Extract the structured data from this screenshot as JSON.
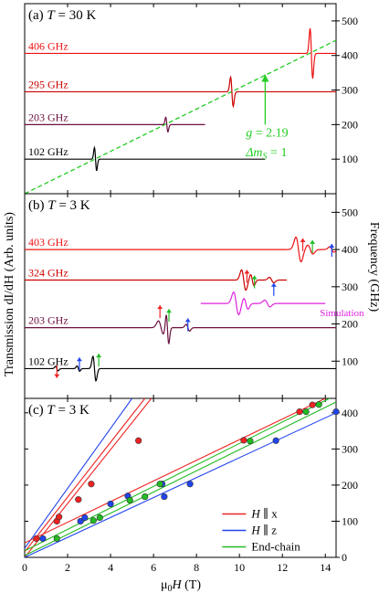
{
  "chart_data": [
    {
      "type": "line",
      "panel_label": "(a)",
      "title_var": "T",
      "title_value": " = 30 K",
      "xlabel": "",
      "ylabel": "",
      "right_ylabel": "Frequency (GHz)",
      "xlim": [
        0,
        14.5
      ],
      "ylim": [
        0,
        550
      ],
      "right_ticks": [
        100,
        200,
        300,
        400,
        500
      ],
      "series": [
        {
          "name": "102 GHz",
          "color": "#000000",
          "offset": 100,
          "x_start": 0,
          "x_end": 11.2,
          "resonances": [
            {
              "x": 3.3,
              "amp": 55,
              "width": 0.05
            }
          ]
        },
        {
          "name": "203 GHz",
          "color": "#6b1040",
          "offset": 200,
          "x_start": 0,
          "x_end": 8.4,
          "resonances": [
            {
              "x": 6.62,
              "amp": 35,
              "width": 0.05
            }
          ]
        },
        {
          "name": "295 GHz",
          "color": "#cc0000",
          "offset": 295,
          "x_start": 0,
          "x_end": 14.5,
          "resonances": [
            {
              "x": 9.65,
              "amp": 70,
              "width": 0.06
            }
          ]
        },
        {
          "name": "406 GHz",
          "color": "#ee1111",
          "offset": 406,
          "x_start": 0,
          "x_end": 14.5,
          "resonances": [
            {
              "x": 13.35,
              "amp": 120,
              "width": 0.06
            }
          ]
        }
      ],
      "fit_line": {
        "x": [
          0,
          14.5
        ],
        "y": [
          0,
          444
        ],
        "color": "#22cc22",
        "style": "dashed"
      },
      "annotation": {
        "line1_var": "g",
        "line1_value": " = 2.19",
        "line2_var": "Δm",
        "line2_sub": "S",
        "line2_value": " = 1",
        "arrow_x": 11.2,
        "arrow_y_from": 200,
        "arrow_y_to": 345
      }
    },
    {
      "type": "line",
      "panel_label": "(b)",
      "title_var": "T",
      "title_value": " = 3 K",
      "xlabel": "",
      "ylabel": "Transmission dI/dH (Arb. units)",
      "right_ylabel": "Frequency (GHz)",
      "xlim": [
        0,
        14.5
      ],
      "ylim": [
        0,
        550
      ],
      "right_ticks": [
        100,
        200,
        300,
        400,
        500
      ],
      "series": [
        {
          "name": "102 GHz",
          "color": "#000000",
          "offset": 80,
          "x_start": 0,
          "x_end": 14.5,
          "resonances": [
            {
              "x": 1.5,
              "amp": 10,
              "width": 0.06
            },
            {
              "x": 2.5,
              "amp": 12,
              "width": 0.06
            },
            {
              "x": 3.25,
              "amp": 55,
              "width": 0.07
            }
          ]
        },
        {
          "name": "203 GHz",
          "color": "#6b1040",
          "offset": 190,
          "x_start": 0,
          "x_end": 14.5,
          "resonances": [
            {
              "x": 6.35,
              "amp": 30,
              "width": 0.12
            },
            {
              "x": 6.65,
              "amp": 70,
              "width": 0.06
            },
            {
              "x": 7.6,
              "amp": 15,
              "width": 0.08
            }
          ]
        },
        {
          "name": "324 GHz",
          "color": "#cc0000",
          "offset": 318,
          "x_start": 0,
          "x_end": 12.2,
          "resonances": [
            {
              "x": 10.2,
              "amp": 45,
              "width": 0.1
            },
            {
              "x": 10.6,
              "amp": 25,
              "width": 0.08
            },
            {
              "x": 11.5,
              "amp": 12,
              "width": 0.1
            }
          ]
        },
        {
          "name": "403 GHz",
          "color": "#ee1111",
          "offset": 400,
          "x_start": 0,
          "x_end": 14.5,
          "resonances": [
            {
              "x": 12.75,
              "amp": 55,
              "width": 0.12
            },
            {
              "x": 13.3,
              "amp": 20,
              "width": 0.12
            },
            {
              "x": 14.3,
              "amp": 12,
              "width": 0.1
            }
          ]
        },
        {
          "name": "Simulation",
          "color": "#dd22dd",
          "offset": 255,
          "x_start": 8.2,
          "x_end": 14.0,
          "resonances": [
            {
              "x": 9.85,
              "amp": 50,
              "width": 0.12
            },
            {
              "x": 10.3,
              "amp": 25,
              "width": 0.1
            },
            {
              "x": 11.3,
              "amp": 15,
              "width": 0.12
            }
          ]
        }
      ],
      "markers": [
        {
          "x": 1.5,
          "y": 55,
          "dir": "up",
          "color": "#ee2222"
        },
        {
          "x": 2.55,
          "y": 110,
          "dir": "down",
          "color": "#2244ee"
        },
        {
          "x": 3.45,
          "y": 120,
          "dir": "down",
          "color": "#22bb22"
        },
        {
          "x": 6.3,
          "y": 250,
          "dir": "down",
          "color": "#ee2222"
        },
        {
          "x": 6.72,
          "y": 240,
          "dir": "down",
          "color": "#22bb22"
        },
        {
          "x": 7.6,
          "y": 215,
          "dir": "down",
          "color": "#2244ee"
        },
        {
          "x": 10.35,
          "y": 345,
          "dir": "down",
          "color": "#ee2222"
        },
        {
          "x": 10.7,
          "y": 330,
          "dir": "down",
          "color": "#22bb22"
        },
        {
          "x": 11.6,
          "y": 310,
          "dir": "down",
          "color": "#2244ee"
        },
        {
          "x": 12.95,
          "y": 430,
          "dir": "down",
          "color": "#ee2222"
        },
        {
          "x": 13.4,
          "y": 425,
          "dir": "down",
          "color": "#22bb22"
        },
        {
          "x": 14.3,
          "y": 415,
          "dir": "down",
          "color": "#2244ee"
        }
      ],
      "sim_label": "Simulation"
    },
    {
      "type": "scatter",
      "panel_label": "(c)",
      "title_var": "T",
      "title_value": " = 3 K",
      "xlabel_var": "μ",
      "xlabel_sub": "0",
      "xlabel_var2": "H",
      "xlabel_unit": " (T)",
      "right_ylabel": "",
      "xlim": [
        0,
        14.5
      ],
      "ylim": [
        0,
        440
      ],
      "x_ticks": [
        0,
        2,
        4,
        6,
        8,
        10,
        12,
        14
      ],
      "right_ticks": [
        0,
        100,
        200,
        300,
        400
      ],
      "legend": [
        {
          "label_var": "H",
          "label_rest": " ∥ x",
          "color": "#ee2222"
        },
        {
          "label_var": "H",
          "label_rest": " ∥ z",
          "color": "#2244ee"
        },
        {
          "label_var": "",
          "label_rest": "End-chain",
          "color": "#22bb22"
        }
      ],
      "series": [
        {
          "name": "H ∥ x",
          "color": "#ee2222",
          "points": [
            [
              0.55,
              52
            ],
            [
              1.5,
              100
            ],
            [
              1.6,
              112
            ],
            [
              2.5,
              160
            ],
            [
              3.1,
              203
            ],
            [
              5.3,
              323
            ],
            [
              10.2,
              324
            ],
            [
              12.8,
              403
            ],
            [
              13.4,
              422
            ]
          ]
        },
        {
          "name": "H ∥ z",
          "color": "#2244ee",
          "points": [
            [
              0.85,
              52
            ],
            [
              2.6,
              100
            ],
            [
              2.8,
              110
            ],
            [
              4.0,
              148
            ],
            [
              4.8,
              170
            ],
            [
              6.4,
              203
            ],
            [
              6.5,
              168
            ],
            [
              7.7,
              203
            ],
            [
              11.7,
              323
            ],
            [
              14.5,
              403
            ]
          ]
        },
        {
          "name": "End-chain",
          "color": "#22bb22",
          "points": [
            [
              1.5,
              52
            ],
            [
              3.2,
              102
            ],
            [
              3.5,
              110
            ],
            [
              4.9,
              158
            ],
            [
              5.6,
              168
            ],
            [
              6.3,
              203
            ],
            [
              10.5,
              322
            ],
            [
              13.1,
              403
            ],
            [
              13.7,
              423
            ]
          ]
        }
      ],
      "lines": [
        {
          "color": "#ee2222",
          "points": [
            [
              0,
              15
            ],
            [
              5.6,
              440
            ]
          ]
        },
        {
          "color": "#ee2222",
          "points": [
            [
              0,
              0
            ],
            [
              5.9,
              440
            ]
          ]
        },
        {
          "color": "#2244ee",
          "points": [
            [
              0,
              0
            ],
            [
              14.5,
              400
            ]
          ]
        },
        {
          "color": "#2244ee",
          "points": [
            [
              0,
              25
            ],
            [
              5.0,
              440
            ]
          ]
        },
        {
          "color": "#ee2222",
          "points": [
            [
              0,
              40
            ],
            [
              14.0,
              440
            ]
          ]
        },
        {
          "color": "#22bb22",
          "points": [
            [
              0,
              18
            ],
            [
              14.2,
              440
            ]
          ]
        },
        {
          "color": "#22bb22",
          "points": [
            [
              0,
              5
            ],
            [
              14.5,
              430
            ]
          ]
        }
      ]
    }
  ]
}
